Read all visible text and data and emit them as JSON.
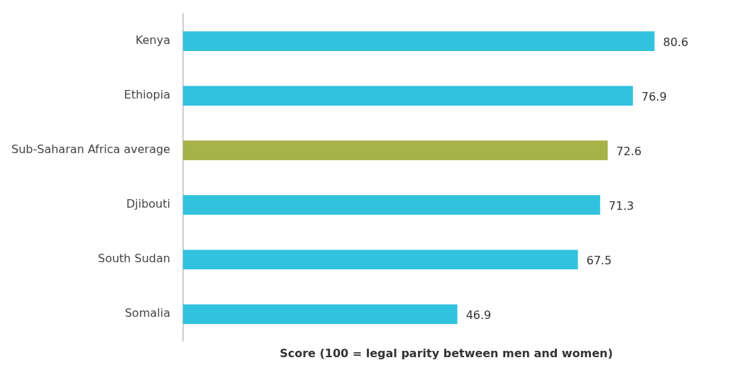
{
  "chart_data": {
    "type": "bar",
    "orientation": "horizontal",
    "categories": [
      "Kenya",
      "Ethiopia",
      "Sub-Saharan Africa average",
      "Djibouti",
      "South Sudan",
      "Somalia"
    ],
    "values": [
      80.6,
      76.9,
      72.6,
      71.3,
      67.5,
      46.9
    ],
    "colors": [
      "#31c2dd",
      "#31c2dd",
      "#a6b24a",
      "#31c2dd",
      "#31c2dd",
      "#31c2dd"
    ],
    "xlabel": "Score (100 = legal parity between men and women)",
    "tick_labels": "y",
    "data_labels": true,
    "grid": false,
    "legend": false
  }
}
